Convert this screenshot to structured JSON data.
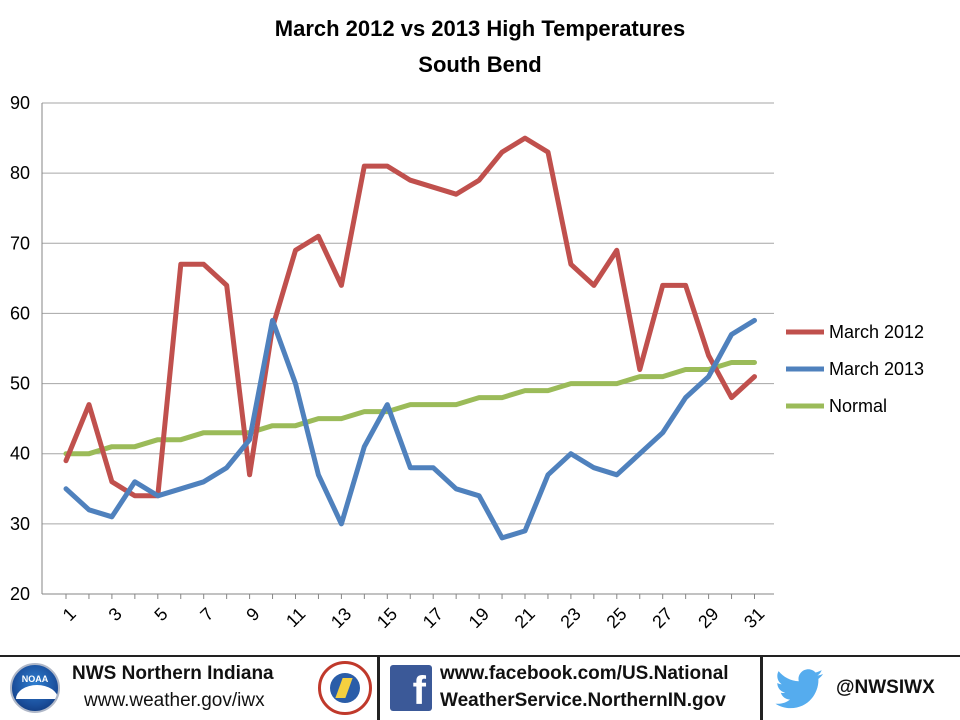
{
  "chart_data": {
    "type": "line",
    "title": "March 2012 vs 2013 High Temperatures",
    "subtitle": "South Bend",
    "xlabel": "",
    "ylabel": "",
    "ylim": [
      20,
      90
    ],
    "yticks": [
      20,
      30,
      40,
      50,
      60,
      70,
      80,
      90
    ],
    "xticks": [
      1,
      3,
      5,
      7,
      9,
      11,
      13,
      15,
      17,
      19,
      21,
      23,
      25,
      27,
      29,
      31
    ],
    "x": [
      1,
      2,
      3,
      4,
      5,
      6,
      7,
      8,
      9,
      10,
      11,
      12,
      13,
      14,
      15,
      16,
      17,
      18,
      19,
      20,
      21,
      22,
      23,
      24,
      25,
      26,
      27,
      28,
      29,
      30,
      31
    ],
    "grid": "horizontal",
    "legend_position": "right",
    "series": [
      {
        "name": "March 2012",
        "color": "#c0504d",
        "values": [
          39,
          47,
          36,
          34,
          34,
          67,
          67,
          64,
          37,
          58,
          69,
          71,
          64,
          81,
          81,
          79,
          78,
          77,
          79,
          83,
          85,
          83,
          67,
          64,
          69,
          52,
          64,
          64,
          54,
          48,
          51
        ]
      },
      {
        "name": "March 2013",
        "color": "#4f81bd",
        "values": [
          35,
          32,
          31,
          36,
          34,
          35,
          36,
          38,
          42,
          59,
          50,
          37,
          30,
          41,
          47,
          38,
          38,
          35,
          34,
          28,
          29,
          37,
          40,
          38,
          37,
          40,
          43,
          48,
          51,
          57,
          59
        ]
      },
      {
        "name": "Normal",
        "color": "#9bbb59",
        "values": [
          40,
          40,
          41,
          41,
          42,
          42,
          43,
          43,
          43,
          44,
          44,
          45,
          45,
          46,
          46,
          47,
          47,
          47,
          48,
          48,
          49,
          49,
          50,
          50,
          50,
          51,
          51,
          52,
          52,
          53,
          53
        ]
      }
    ]
  },
  "footer": {
    "noaa_logo_text": "NOAA",
    "office_name": "NWS Northern Indiana",
    "office_url": "www.weather.gov/iwx",
    "facebook_icon": "facebook-icon",
    "facebook_line1": "www.facebook.com/US.National",
    "facebook_line2": "WeatherService.NorthernIN.gov",
    "twitter_icon": "twitter-bird-icon",
    "twitter_handle": "@NWSIWX"
  }
}
